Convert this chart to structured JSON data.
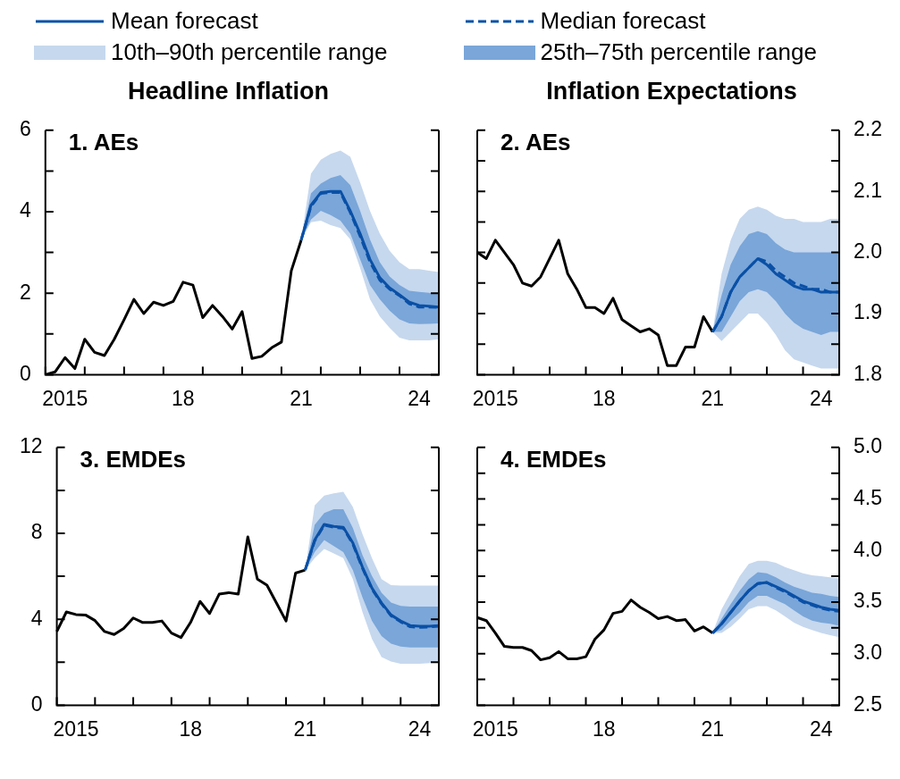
{
  "chart_data": [
    {
      "type": "line",
      "title": "1. AEs",
      "subtitle": "Headline Inflation",
      "legend": "top",
      "categories": [
        null,
        null,
        "2015",
        null,
        null,
        null,
        null,
        null,
        null,
        null,
        null,
        null,
        null,
        null,
        "18",
        null,
        null,
        null,
        null,
        null,
        null,
        null,
        null,
        null,
        null,
        null,
        "21",
        null,
        null,
        null,
        null,
        null,
        null,
        null,
        null,
        null,
        null,
        null,
        "24",
        null,
        null
      ],
      "ylim": [
        0,
        6
      ],
      "yticks": [
        0,
        {
          "value": 1,
          "label": null
        },
        2,
        {
          "value": 3,
          "label": null
        },
        4,
        {
          "value": 5,
          "label": null
        },
        6
      ],
      "series": [
        {
          "color": "#000000",
          "values": [
            0,
            0.07,
            0.42,
            0.15,
            0.87,
            0.55,
            0.47,
            0.87,
            1.35,
            1.85,
            1.5,
            1.78,
            1.7,
            1.8,
            2.27,
            2.2,
            1.4,
            1.7,
            1.43,
            1.12,
            1.55,
            0.4,
            0.45,
            0.66,
            0.8,
            2.55,
            3.3,
            null,
            null,
            null,
            null,
            null,
            null,
            null,
            null,
            null,
            null,
            null,
            null,
            null,
            null
          ]
        },
        {
          "name": "Mean forecast",
          "color": "#0a50a6",
          "line_style": "solid",
          "values": [
            null,
            null,
            null,
            null,
            null,
            null,
            null,
            null,
            null,
            null,
            null,
            null,
            null,
            null,
            null,
            null,
            null,
            null,
            null,
            null,
            null,
            null,
            null,
            null,
            null,
            null,
            3.3,
            4.16,
            4.47,
            4.5,
            4.5,
            4.02,
            3.46,
            2.83,
            2.38,
            2.13,
            1.96,
            1.78,
            1.7,
            1.68,
            1.66
          ]
        },
        {
          "name": "Median forecast",
          "color": "#0a50a6",
          "line_style": "dashed",
          "values": [
            null,
            null,
            null,
            null,
            null,
            null,
            null,
            null,
            null,
            null,
            null,
            null,
            null,
            null,
            null,
            null,
            null,
            null,
            null,
            null,
            null,
            null,
            null,
            null,
            null,
            null,
            3.3,
            4.13,
            4.45,
            4.47,
            4.47,
            3.98,
            3.4,
            2.77,
            2.32,
            2.1,
            1.94,
            1.74,
            1.66,
            1.66,
            1.65
          ]
        },
        {
          "name": "10th–90th percentile range",
          "color": "#c6d8ee",
          "values": [
            null,
            null,
            null,
            null,
            null,
            null,
            null,
            null,
            null,
            null,
            null,
            null,
            null,
            null,
            null,
            null,
            null,
            null,
            null,
            null,
            null,
            null,
            null,
            null,
            null,
            null,
            null,
            null,
            null,
            null,
            null,
            null,
            null,
            null,
            null,
            null,
            null,
            null,
            null,
            null,
            null
          ],
          "lower": [
            null,
            null,
            null,
            null,
            null,
            null,
            null,
            null,
            null,
            null,
            null,
            null,
            null,
            null,
            null,
            null,
            null,
            null,
            null,
            null,
            null,
            null,
            null,
            null,
            null,
            null,
            3.3,
            3.74,
            3.78,
            3.67,
            3.6,
            3.32,
            2.62,
            1.85,
            1.43,
            1.15,
            0.91,
            0.84,
            0.84,
            0.84,
            0.87
          ],
          "upper": [
            null,
            null,
            null,
            null,
            null,
            null,
            null,
            null,
            null,
            null,
            null,
            null,
            null,
            null,
            null,
            null,
            null,
            null,
            null,
            null,
            null,
            null,
            null,
            null,
            null,
            null,
            3.3,
            4.93,
            5.28,
            5.42,
            5.5,
            5.35,
            4.72,
            4.02,
            3.46,
            3.04,
            2.76,
            2.59,
            2.59,
            2.55,
            2.52
          ]
        },
        {
          "name": "25th–75th percentile range",
          "color": "#7aa6d9",
          "values": [
            null,
            null,
            null,
            null,
            null,
            null,
            null,
            null,
            null,
            null,
            null,
            null,
            null,
            null,
            null,
            null,
            null,
            null,
            null,
            null,
            null,
            null,
            null,
            null,
            null,
            null,
            null,
            null,
            null,
            null,
            null,
            null,
            null,
            null,
            null,
            null,
            null,
            null,
            null,
            null,
            null
          ],
          "lower": [
            null,
            null,
            null,
            null,
            null,
            null,
            null,
            null,
            null,
            null,
            null,
            null,
            null,
            null,
            null,
            null,
            null,
            null,
            null,
            null,
            null,
            null,
            null,
            null,
            null,
            null,
            3.3,
            3.81,
            4.02,
            3.92,
            3.78,
            3.46,
            2.83,
            2.2,
            1.85,
            1.57,
            1.36,
            1.26,
            1.24,
            1.25,
            1.26
          ],
          "upper": [
            null,
            null,
            null,
            null,
            null,
            null,
            null,
            null,
            null,
            null,
            null,
            null,
            null,
            null,
            null,
            null,
            null,
            null,
            null,
            null,
            null,
            null,
            null,
            null,
            null,
            null,
            3.3,
            4.45,
            4.69,
            4.83,
            4.9,
            4.65,
            4.02,
            3.32,
            2.76,
            2.41,
            2.2,
            2.06,
            2.03,
            2.01,
            1.99
          ]
        }
      ]
    },
    {
      "type": "line",
      "title": "2. AEs",
      "subtitle": "Inflation Expectations",
      "categories": [
        null,
        null,
        "2015",
        null,
        null,
        null,
        null,
        null,
        null,
        null,
        null,
        null,
        null,
        null,
        "18",
        null,
        null,
        null,
        null,
        null,
        null,
        null,
        null,
        null,
        null,
        null,
        "21",
        null,
        null,
        null,
        null,
        null,
        null,
        null,
        null,
        null,
        null,
        null,
        "24",
        null,
        null
      ],
      "y2lim": [
        1.8,
        2.2
      ],
      "y2ticks": [
        1.8,
        {
          "value": 1.85,
          "label": null
        },
        1.9,
        {
          "value": 1.95,
          "label": null
        },
        {
          "value": 2,
          "label": "2.0"
        },
        {
          "value": 2.05,
          "label": null
        },
        2.1,
        {
          "value": 2.15,
          "label": null
        },
        2.2
      ],
      "series": [
        {
          "color": "#000000",
          "axis": "y2",
          "values": [
            2.0,
            1.99,
            2.02,
            2.0,
            1.98,
            1.95,
            1.945,
            1.96,
            1.99,
            2.02,
            1.965,
            1.94,
            1.91,
            1.91,
            1.9,
            1.925,
            1.89,
            1.88,
            1.87,
            1.875,
            1.865,
            1.815,
            1.815,
            1.845,
            1.845,
            1.895,
            1.87,
            null,
            null,
            null,
            null,
            null,
            null,
            null,
            null,
            null,
            null,
            null,
            null,
            null,
            null
          ]
        },
        {
          "color": "#0a50a6",
          "axis": "y2",
          "line_style": "solid",
          "values": [
            null,
            null,
            null,
            null,
            null,
            null,
            null,
            null,
            null,
            null,
            null,
            null,
            null,
            null,
            null,
            null,
            null,
            null,
            null,
            null,
            null,
            null,
            null,
            null,
            null,
            null,
            1.87,
            1.895,
            1.935,
            1.96,
            1.975,
            1.99,
            1.98,
            1.965,
            1.955,
            1.945,
            1.94,
            1.94,
            1.935,
            1.935,
            1.935
          ]
        },
        {
          "color": "#0a50a6",
          "axis": "y2",
          "line_style": "dashed",
          "values": [
            null,
            null,
            null,
            null,
            null,
            null,
            null,
            null,
            null,
            null,
            null,
            null,
            null,
            null,
            null,
            null,
            null,
            null,
            null,
            null,
            null,
            null,
            null,
            null,
            null,
            null,
            1.87,
            1.895,
            1.935,
            1.96,
            1.975,
            1.99,
            1.985,
            1.97,
            1.96,
            1.95,
            1.945,
            1.94,
            1.94,
            1.935,
            1.935
          ]
        },
        {
          "color": "#c6d8ee",
          "axis": "y2",
          "values": [
            null,
            null,
            null,
            null,
            null,
            null,
            null,
            null,
            null,
            null,
            null,
            null,
            null,
            null,
            null,
            null,
            null,
            null,
            null,
            null,
            null,
            null,
            null,
            null,
            null,
            null,
            null,
            null,
            null,
            null,
            null,
            null,
            null,
            null,
            null,
            null,
            null,
            null,
            null,
            null,
            null
          ],
          "lower": [
            null,
            null,
            null,
            null,
            null,
            null,
            null,
            null,
            null,
            null,
            null,
            null,
            null,
            null,
            null,
            null,
            null,
            null,
            null,
            null,
            null,
            null,
            null,
            null,
            null,
            null,
            1.87,
            1.855,
            1.87,
            1.885,
            1.9,
            1.9,
            1.885,
            1.865,
            1.84,
            1.825,
            1.82,
            1.815,
            1.81,
            1.81,
            1.81
          ],
          "upper": [
            null,
            null,
            null,
            null,
            null,
            null,
            null,
            null,
            null,
            null,
            null,
            null,
            null,
            null,
            null,
            null,
            null,
            null,
            null,
            null,
            null,
            null,
            null,
            null,
            null,
            null,
            1.87,
            1.965,
            2.02,
            2.055,
            2.07,
            2.075,
            2.07,
            2.06,
            2.055,
            2.055,
            2.05,
            2.05,
            2.05,
            2.055,
            2.055
          ]
        },
        {
          "color": "#7aa6d9",
          "axis": "y2",
          "values": [
            null,
            null,
            null,
            null,
            null,
            null,
            null,
            null,
            null,
            null,
            null,
            null,
            null,
            null,
            null,
            null,
            null,
            null,
            null,
            null,
            null,
            null,
            null,
            null,
            null,
            null,
            null,
            null,
            null,
            null,
            null,
            null,
            null,
            null,
            null,
            null,
            null,
            null,
            null,
            null,
            null
          ],
          "lower": [
            null,
            null,
            null,
            null,
            null,
            null,
            null,
            null,
            null,
            null,
            null,
            null,
            null,
            null,
            null,
            null,
            null,
            null,
            null,
            null,
            null,
            null,
            null,
            null,
            null,
            null,
            1.87,
            1.87,
            1.895,
            1.92,
            1.935,
            1.94,
            1.935,
            1.92,
            1.9,
            1.885,
            1.875,
            1.87,
            1.865,
            1.87,
            1.87
          ],
          "upper": [
            null,
            null,
            null,
            null,
            null,
            null,
            null,
            null,
            null,
            null,
            null,
            null,
            null,
            null,
            null,
            null,
            null,
            null,
            null,
            null,
            null,
            null,
            null,
            null,
            null,
            null,
            1.87,
            1.93,
            1.98,
            2.01,
            2.03,
            2.035,
            2.03,
            2.015,
            2.005,
            2.0,
            2.0,
            2.0,
            2.0,
            2.0,
            2.0
          ]
        }
      ]
    },
    {
      "type": "line",
      "title": "3. EMDEs",
      "categories": [
        null,
        null,
        "2015",
        null,
        null,
        null,
        null,
        null,
        null,
        null,
        null,
        null,
        null,
        null,
        "18",
        null,
        null,
        null,
        null,
        null,
        null,
        null,
        null,
        null,
        null,
        null,
        "21",
        null,
        null,
        null,
        null,
        null,
        null,
        null,
        null,
        null,
        null,
        null,
        "24",
        null,
        null
      ],
      "ylim": [
        0,
        12
      ],
      "yticks": [
        0,
        {
          "value": 2,
          "label": null
        },
        4,
        {
          "value": 6,
          "label": null
        },
        8,
        {
          "value": 10,
          "label": null
        },
        12
      ],
      "series": [
        {
          "color": "#000000",
          "values": [
            3.43,
            4.34,
            4.22,
            4.2,
            3.94,
            3.43,
            3.29,
            3.57,
            4.06,
            3.85,
            3.85,
            3.92,
            3.36,
            3.15,
            3.85,
            4.83,
            4.27,
            5.17,
            5.24,
            5.17,
            7.83,
            5.87,
            5.59,
            4.76,
            3.92,
            6.15,
            6.29,
            null,
            null,
            null,
            null,
            null,
            null,
            null,
            null,
            null,
            null,
            null,
            null,
            null,
            null
          ]
        },
        {
          "color": "#0a50a6",
          "line_style": "solid",
          "values": [
            null,
            null,
            null,
            null,
            null,
            null,
            null,
            null,
            null,
            null,
            null,
            null,
            null,
            null,
            null,
            null,
            null,
            null,
            null,
            null,
            null,
            null,
            null,
            null,
            null,
            null,
            6.29,
            7.69,
            8.42,
            8.32,
            8.28,
            7.55,
            6.43,
            5.45,
            4.76,
            4.2,
            3.92,
            3.71,
            3.68,
            3.68,
            3.71
          ]
        },
        {
          "color": "#0a50a6",
          "line_style": "dashed",
          "values": [
            null,
            null,
            null,
            null,
            null,
            null,
            null,
            null,
            null,
            null,
            null,
            null,
            null,
            null,
            null,
            null,
            null,
            null,
            null,
            null,
            null,
            null,
            null,
            null,
            null,
            null,
            6.29,
            7.65,
            8.38,
            8.28,
            8.24,
            7.5,
            6.38,
            5.4,
            4.72,
            4.16,
            3.88,
            3.65,
            3.62,
            3.64,
            3.68
          ]
        },
        {
          "color": "#c6d8ee",
          "values": [
            null,
            null,
            null,
            null,
            null,
            null,
            null,
            null,
            null,
            null,
            null,
            null,
            null,
            null,
            null,
            null,
            null,
            null,
            null,
            null,
            null,
            null,
            null,
            null,
            null,
            null,
            null,
            null,
            null,
            null,
            null,
            null,
            null,
            null,
            null,
            null,
            null,
            null,
            null,
            null,
            null
          ],
          "lower": [
            null,
            null,
            null,
            null,
            null,
            null,
            null,
            null,
            null,
            null,
            null,
            null,
            null,
            null,
            null,
            null,
            null,
            null,
            null,
            null,
            null,
            null,
            null,
            null,
            null,
            null,
            6.29,
            6.85,
            7.27,
            7.06,
            6.85,
            5.87,
            4.34,
            3.08,
            2.24,
            2.03,
            1.93,
            1.93,
            1.93,
            1.96,
            1.96
          ],
          "upper": [
            null,
            null,
            null,
            null,
            null,
            null,
            null,
            null,
            null,
            null,
            null,
            null,
            null,
            null,
            null,
            null,
            null,
            null,
            null,
            null,
            null,
            null,
            null,
            null,
            null,
            null,
            6.29,
            9.3,
            9.76,
            9.86,
            9.93,
            9.23,
            7.97,
            6.85,
            5.87,
            5.59,
            5.57,
            5.57,
            5.57,
            5.57,
            5.57
          ]
        },
        {
          "color": "#7aa6d9",
          "values": [
            null,
            null,
            null,
            null,
            null,
            null,
            null,
            null,
            null,
            null,
            null,
            null,
            null,
            null,
            null,
            null,
            null,
            null,
            null,
            null,
            null,
            null,
            null,
            null,
            null,
            null,
            null,
            null,
            null,
            null,
            null,
            null,
            null,
            null,
            null,
            null,
            null,
            null,
            null,
            null,
            null
          ],
          "lower": [
            null,
            null,
            null,
            null,
            null,
            null,
            null,
            null,
            null,
            null,
            null,
            null,
            null,
            null,
            null,
            null,
            null,
            null,
            null,
            null,
            null,
            null,
            null,
            null,
            null,
            null,
            6.29,
            7.13,
            7.69,
            7.41,
            7.13,
            6.29,
            5.03,
            3.92,
            3.22,
            2.87,
            2.73,
            2.69,
            2.69,
            2.69,
            2.69
          ],
          "upper": [
            null,
            null,
            null,
            null,
            null,
            null,
            null,
            null,
            null,
            null,
            null,
            null,
            null,
            null,
            null,
            null,
            null,
            null,
            null,
            null,
            null,
            null,
            null,
            null,
            null,
            null,
            6.29,
            8.39,
            8.95,
            9.12,
            9.12,
            8.25,
            6.99,
            6.01,
            5.24,
            4.78,
            4.62,
            4.59,
            4.59,
            4.59,
            4.59
          ]
        }
      ]
    },
    {
      "type": "line",
      "title": "4. EMDEs",
      "categories": [
        null,
        null,
        "2015",
        null,
        null,
        null,
        null,
        null,
        null,
        null,
        null,
        null,
        null,
        null,
        "18",
        null,
        null,
        null,
        null,
        null,
        null,
        null,
        null,
        null,
        null,
        null,
        "21",
        null,
        null,
        null,
        null,
        null,
        null,
        null,
        null,
        null,
        null,
        null,
        "24",
        null,
        null
      ],
      "y2lim": [
        2.5,
        5
      ],
      "y2ticks": [
        2.5,
        {
          "value": 2.75,
          "label": null
        },
        {
          "value": 3,
          "label": "3.0"
        },
        {
          "value": 3.25,
          "label": null
        },
        3.5,
        {
          "value": 3.75,
          "label": null
        },
        {
          "value": 4,
          "label": "4.0"
        },
        {
          "value": 4.25,
          "label": null
        },
        4.5,
        {
          "value": 4.75,
          "label": null
        },
        {
          "value": 5,
          "label": "5.0"
        }
      ],
      "series": [
        {
          "color": "#000000",
          "axis": "y2",
          "values": [
            3.35,
            3.32,
            3.2,
            3.07,
            3.06,
            3.06,
            3.03,
            2.94,
            2.96,
            3.02,
            2.95,
            2.95,
            2.97,
            3.14,
            3.23,
            3.39,
            3.41,
            3.52,
            3.45,
            3.4,
            3.34,
            3.36,
            3.32,
            3.33,
            3.22,
            3.26,
            3.2,
            null,
            null,
            null,
            null,
            null,
            null,
            null,
            null,
            null,
            null,
            null,
            null,
            null,
            null
          ]
        },
        {
          "color": "#0a50a6",
          "axis": "y2",
          "line_style": "solid",
          "values": [
            null,
            null,
            null,
            null,
            null,
            null,
            null,
            null,
            null,
            null,
            null,
            null,
            null,
            null,
            null,
            null,
            null,
            null,
            null,
            null,
            null,
            null,
            null,
            null,
            null,
            null,
            3.2,
            3.29,
            3.4,
            3.51,
            3.61,
            3.68,
            3.69,
            3.65,
            3.61,
            3.56,
            3.51,
            3.48,
            3.45,
            3.43,
            3.42
          ]
        },
        {
          "color": "#0a50a6",
          "axis": "y2",
          "line_style": "dashed",
          "values": [
            null,
            null,
            null,
            null,
            null,
            null,
            null,
            null,
            null,
            null,
            null,
            null,
            null,
            null,
            null,
            null,
            null,
            null,
            null,
            null,
            null,
            null,
            null,
            null,
            null,
            null,
            3.2,
            3.29,
            3.4,
            3.51,
            3.61,
            3.68,
            3.69,
            3.64,
            3.6,
            3.55,
            3.5,
            3.47,
            3.44,
            3.42,
            3.41
          ]
        },
        {
          "color": "#c6d8ee",
          "axis": "y2",
          "values": [
            null,
            null,
            null,
            null,
            null,
            null,
            null,
            null,
            null,
            null,
            null,
            null,
            null,
            null,
            null,
            null,
            null,
            null,
            null,
            null,
            null,
            null,
            null,
            null,
            null,
            null,
            null,
            null,
            null,
            null,
            null,
            null,
            null,
            null,
            null,
            null,
            null,
            null,
            null,
            null,
            null
          ],
          "lower": [
            null,
            null,
            null,
            null,
            null,
            null,
            null,
            null,
            null,
            null,
            null,
            null,
            null,
            null,
            null,
            null,
            null,
            null,
            null,
            null,
            null,
            null,
            null,
            null,
            null,
            null,
            3.2,
            3.2,
            3.26,
            3.34,
            3.43,
            3.46,
            3.46,
            3.42,
            3.36,
            3.3,
            3.26,
            3.23,
            3.2,
            3.18,
            3.16
          ],
          "upper": [
            null,
            null,
            null,
            null,
            null,
            null,
            null,
            null,
            null,
            null,
            null,
            null,
            null,
            null,
            null,
            null,
            null,
            null,
            null,
            null,
            null,
            null,
            null,
            null,
            null,
            null,
            3.2,
            3.43,
            3.59,
            3.75,
            3.87,
            3.9,
            3.9,
            3.88,
            3.84,
            3.81,
            3.78,
            3.76,
            3.75,
            3.74,
            3.73
          ]
        },
        {
          "color": "#7aa6d9",
          "axis": "y2",
          "values": [
            null,
            null,
            null,
            null,
            null,
            null,
            null,
            null,
            null,
            null,
            null,
            null,
            null,
            null,
            null,
            null,
            null,
            null,
            null,
            null,
            null,
            null,
            null,
            null,
            null,
            null,
            null,
            null,
            null,
            null,
            null,
            null,
            null,
            null,
            null,
            null,
            null,
            null,
            null,
            null,
            null
          ],
          "lower": [
            null,
            null,
            null,
            null,
            null,
            null,
            null,
            null,
            null,
            null,
            null,
            null,
            null,
            null,
            null,
            null,
            null,
            null,
            null,
            null,
            null,
            null,
            null,
            null,
            null,
            null,
            3.2,
            3.23,
            3.32,
            3.4,
            3.5,
            3.56,
            3.56,
            3.52,
            3.48,
            3.42,
            3.36,
            3.32,
            3.3,
            3.29,
            3.27
          ],
          "upper": [
            null,
            null,
            null,
            null,
            null,
            null,
            null,
            null,
            null,
            null,
            null,
            null,
            null,
            null,
            null,
            null,
            null,
            null,
            null,
            null,
            null,
            null,
            null,
            null,
            null,
            null,
            3.2,
            3.34,
            3.48,
            3.61,
            3.72,
            3.79,
            3.78,
            3.74,
            3.69,
            3.65,
            3.62,
            3.59,
            3.58,
            3.56,
            3.55
          ]
        }
      ]
    }
  ]
}
